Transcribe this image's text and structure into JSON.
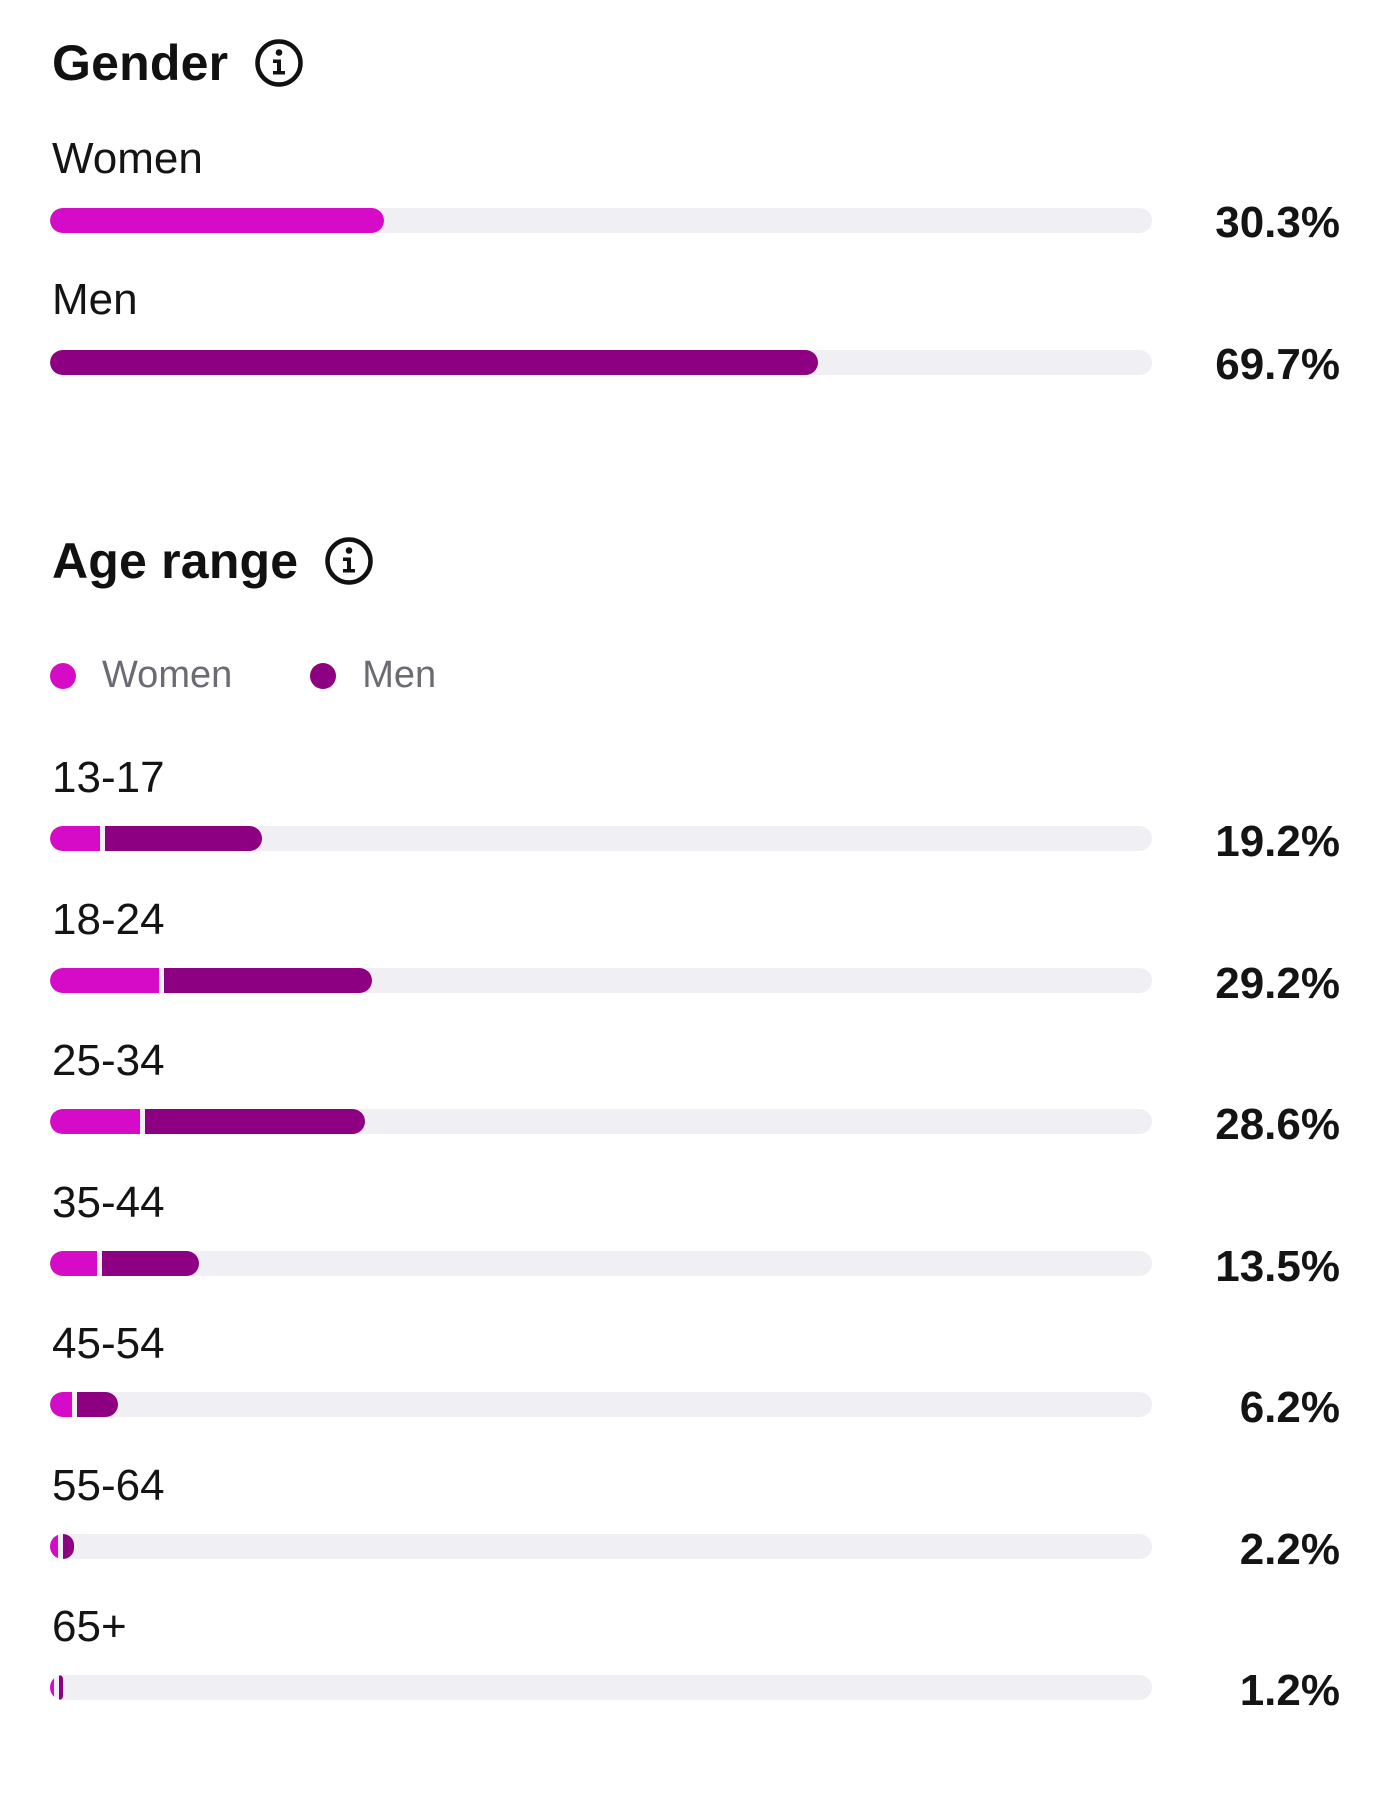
{
  "colors": {
    "women": "#d60bc7",
    "men": "#8c0081",
    "track": "#f0f0f4"
  },
  "gender": {
    "title": "Gender",
    "icon": "info-icon",
    "rows": [
      {
        "label": "Women",
        "value": 30.3,
        "display": "30.3%",
        "series": "women"
      },
      {
        "label": "Men",
        "value": 69.7,
        "display": "69.7%",
        "series": "men"
      }
    ]
  },
  "age": {
    "title": "Age range",
    "icon": "info-icon",
    "legend": [
      {
        "label": "Women",
        "series": "women"
      },
      {
        "label": "Men",
        "series": "men"
      }
    ]
  },
  "chart_data": [
    {
      "type": "bar",
      "title": "Gender",
      "categories": [
        "Women",
        "Men"
      ],
      "values": [
        30.3,
        69.7
      ],
      "ylim": [
        0,
        100
      ]
    },
    {
      "type": "bar",
      "title": "Age range",
      "categories": [
        "13-17",
        "18-24",
        "25-34",
        "35-44",
        "45-54",
        "55-64",
        "65+"
      ],
      "totals": [
        19.2,
        29.2,
        28.6,
        13.5,
        6.2,
        2.2,
        1.2
      ],
      "totals_display": [
        "19.2%",
        "29.2%",
        "28.6%",
        "13.5%",
        "6.2%",
        "2.2%",
        "1.2%"
      ],
      "series": [
        {
          "name": "Women",
          "values": [
            4.5,
            9.9,
            8.2,
            4.3,
            2.0,
            0.7,
            0.4
          ]
        },
        {
          "name": "Men",
          "values": [
            14.7,
            19.3,
            20.4,
            9.2,
            4.2,
            1.5,
            0.8
          ]
        }
      ],
      "ylim": [
        0,
        100
      ],
      "legend": "top-left"
    }
  ]
}
